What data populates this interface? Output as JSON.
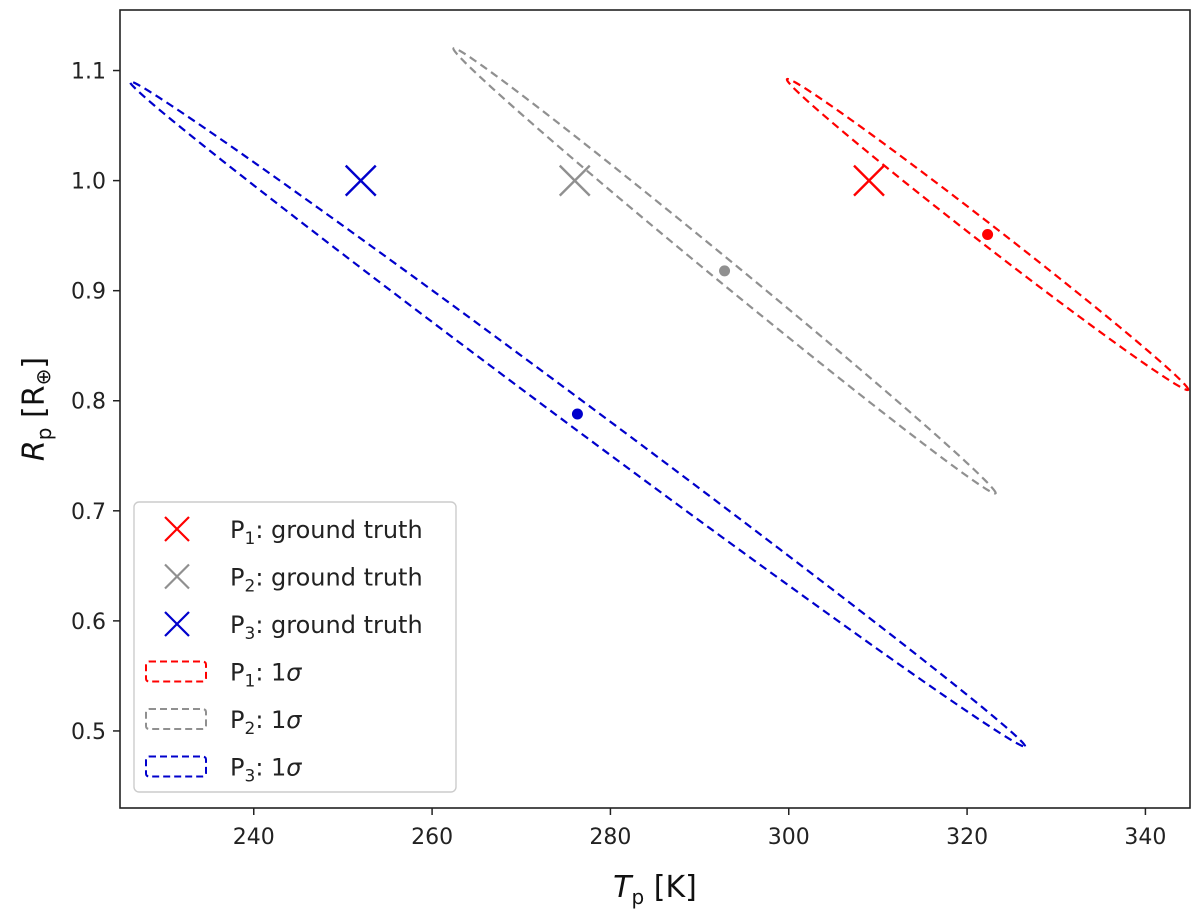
{
  "chart_data": {
    "type": "scatter",
    "xlabel": {
      "symbol": "T",
      "sub": "p",
      "unit": " [K]"
    },
    "ylabel": {
      "symbol": "R",
      "sub": "p",
      "unit_open": " [R",
      "unit_sub": "⊕",
      "unit_close": "]"
    },
    "xlim": [
      225,
      345
    ],
    "ylim": [
      0.43,
      1.155
    ],
    "xticks": [
      240,
      260,
      280,
      300,
      320,
      340
    ],
    "yticks": [
      0.5,
      0.6,
      0.7,
      0.8,
      0.9,
      1.0,
      1.1
    ],
    "xtick_labels": [
      "240",
      "260",
      "280",
      "300",
      "320",
      "340"
    ],
    "ytick_labels": [
      "0.5",
      "0.6",
      "0.7",
      "0.8",
      "0.9",
      "1.0",
      "1.1"
    ],
    "grid": false,
    "legend_position": "lower-left",
    "series": [
      {
        "name": "P1",
        "color": "#ff0000",
        "ground_truth": {
          "x": 309,
          "y": 1.0
        },
        "estimate": {
          "x": 322.3,
          "y": 0.951
        },
        "ellipse_1sigma": {
          "center": [
            322.3,
            0.951
          ],
          "axis_a_end": [
            344.8,
            0.81
          ],
          "axis_b_end": [
            322.7,
            0.96
          ]
        }
      },
      {
        "name": "P2",
        "color": "#909090",
        "ground_truth": {
          "x": 276,
          "y": 1.0
        },
        "estimate": {
          "x": 292.8,
          "y": 0.918
        },
        "ellipse_1sigma": {
          "center": [
            292.8,
            0.918
          ],
          "axis_a_end": [
            323.2,
            0.716
          ],
          "axis_b_end": [
            293.3,
            0.928
          ]
        }
      },
      {
        "name": "P3",
        "color": "#0000cc",
        "ground_truth": {
          "x": 252,
          "y": 1.0
        },
        "estimate": {
          "x": 276.3,
          "y": 0.788
        },
        "ellipse_1sigma": {
          "center": [
            276.3,
            0.788
          ],
          "axis_a_end": [
            326.5,
            0.486
          ],
          "axis_b_end": [
            277.0,
            0.799
          ]
        }
      }
    ],
    "legend": [
      {
        "kind": "marker",
        "color": "#ff0000",
        "main": "P",
        "sub": "1",
        "text": ": ground truth"
      },
      {
        "kind": "marker",
        "color": "#909090",
        "main": "P",
        "sub": "2",
        "text": ": ground truth"
      },
      {
        "kind": "marker",
        "color": "#0000cc",
        "main": "P",
        "sub": "3",
        "text": ": ground truth"
      },
      {
        "kind": "ellipse",
        "color": "#ff0000",
        "main": "P",
        "sub": "1",
        "text": ": 1",
        "sigma": "σ"
      },
      {
        "kind": "ellipse",
        "color": "#909090",
        "main": "P",
        "sub": "2",
        "text": ": 1",
        "sigma": "σ"
      },
      {
        "kind": "ellipse",
        "color": "#0000cc",
        "main": "P",
        "sub": "3",
        "text": ": 1",
        "sigma": "σ"
      }
    ]
  }
}
